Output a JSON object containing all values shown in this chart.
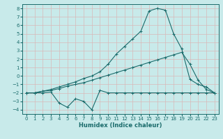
{
  "title": "",
  "xlabel": "Humidex (Indice chaleur)",
  "xlim": [
    -0.5,
    23.5
  ],
  "ylim": [
    -4.5,
    8.5
  ],
  "yticks": [
    -4,
    -3,
    -2,
    -1,
    0,
    1,
    2,
    3,
    4,
    5,
    6,
    7,
    8
  ],
  "xticks": [
    0,
    1,
    2,
    3,
    4,
    5,
    6,
    7,
    8,
    9,
    10,
    11,
    12,
    13,
    14,
    15,
    16,
    17,
    18,
    19,
    20,
    21,
    22,
    23
  ],
  "bg_color": "#c8eaea",
  "grid_color": "#b0d8d8",
  "line_color": "#1a6b6b",
  "line1_x": [
    0,
    1,
    2,
    3,
    4,
    5,
    6,
    7,
    8,
    9,
    10,
    11,
    12,
    13,
    14,
    15,
    16,
    17,
    18,
    19,
    20,
    21,
    22,
    23
  ],
  "line1_y": [
    -2.0,
    -2.0,
    -2.0,
    -1.9,
    -3.2,
    -3.7,
    -2.7,
    -3.0,
    -4.0,
    -1.7,
    -2.0,
    -2.0,
    -2.0,
    -2.0,
    -2.0,
    -2.0,
    -2.0,
    -2.0,
    -2.0,
    -2.0,
    -2.0,
    -2.0,
    -2.0,
    -2.0
  ],
  "line2_x": [
    0,
    1,
    2,
    3,
    4,
    5,
    6,
    7,
    8,
    9,
    10,
    11,
    12,
    13,
    14,
    15,
    16,
    17,
    18,
    19,
    20,
    21,
    22,
    23
  ],
  "line2_y": [
    -2.0,
    -2.0,
    -1.8,
    -1.7,
    -1.5,
    -1.2,
    -1.0,
    -0.8,
    -0.5,
    -0.2,
    0.1,
    0.4,
    0.7,
    1.0,
    1.3,
    1.6,
    1.9,
    2.2,
    2.5,
    2.8,
    1.4,
    -0.5,
    -1.6,
    -2.0
  ],
  "line3_x": [
    0,
    1,
    2,
    3,
    4,
    5,
    6,
    7,
    8,
    9,
    10,
    11,
    12,
    13,
    14,
    15,
    16,
    17,
    18,
    19,
    20,
    21,
    22,
    23
  ],
  "line3_y": [
    -2.0,
    -2.0,
    -1.8,
    -1.6,
    -1.3,
    -1.0,
    -0.7,
    -0.3,
    0.0,
    0.5,
    1.4,
    2.6,
    3.5,
    4.4,
    5.3,
    7.7,
    8.0,
    7.8,
    5.0,
    3.2,
    -0.4,
    -1.0,
    -1.3,
    -2.0
  ],
  "tick_fontsize": 5,
  "xlabel_fontsize": 6,
  "marker_size": 2.5,
  "linewidth": 0.8
}
